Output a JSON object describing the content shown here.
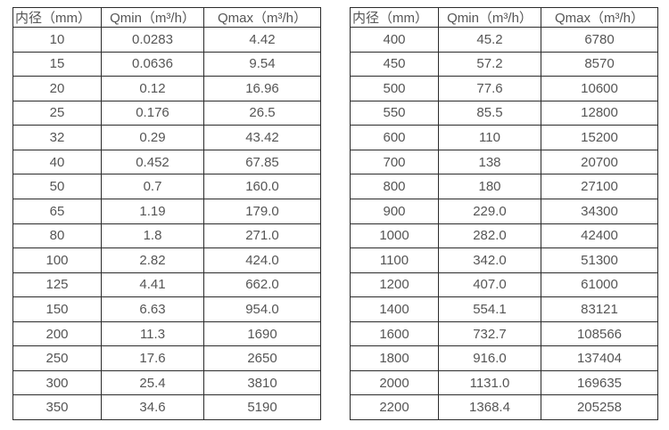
{
  "style": {
    "border_color": "#2b2b2b",
    "text_color": "#555555",
    "background": "#ffffff"
  },
  "tables": [
    {
      "name": "small-diameter-flow-table",
      "headers": [
        "内径（mm）",
        "Qmin（m³/h）",
        "Qmax（m³/h）"
      ],
      "rows": [
        [
          "10",
          "0.0283",
          "4.42"
        ],
        [
          "15",
          "0.0636",
          "9.54"
        ],
        [
          "20",
          "0.12",
          "16.96"
        ],
        [
          "25",
          "0.176",
          "26.5"
        ],
        [
          "32",
          "0.29",
          "43.42"
        ],
        [
          "40",
          "0.452",
          "67.85"
        ],
        [
          "50",
          "0.7",
          "160.0"
        ],
        [
          "65",
          "1.19",
          "179.0"
        ],
        [
          "80",
          "1.8",
          "271.0"
        ],
        [
          "100",
          "2.82",
          "424.0"
        ],
        [
          "125",
          "4.41",
          "662.0"
        ],
        [
          "150",
          "6.63",
          "954.0"
        ],
        [
          "200",
          "11.3",
          "1690"
        ],
        [
          "250",
          "17.6",
          "2650"
        ],
        [
          "300",
          "25.4",
          "3810"
        ],
        [
          "350",
          "34.6",
          "5190"
        ]
      ]
    },
    {
      "name": "large-diameter-flow-table",
      "headers": [
        "内径（mm）",
        "Qmin（m³/h）",
        "Qmax（m³/h）"
      ],
      "rows": [
        [
          "400",
          "45.2",
          "6780"
        ],
        [
          "450",
          "57.2",
          "8570"
        ],
        [
          "500",
          "77.6",
          "10600"
        ],
        [
          "550",
          "85.5",
          "12800"
        ],
        [
          "600",
          "110",
          "15200"
        ],
        [
          "700",
          "138",
          "20700"
        ],
        [
          "800",
          "180",
          "27100"
        ],
        [
          "900",
          "229.0",
          "34300"
        ],
        [
          "1000",
          "282.0",
          "42400"
        ],
        [
          "1100",
          "342.0",
          "51300"
        ],
        [
          "1200",
          "407.0",
          "61000"
        ],
        [
          "1400",
          "554.1",
          "83121"
        ],
        [
          "1600",
          "732.7",
          "108566"
        ],
        [
          "1800",
          "916.0",
          "137404"
        ],
        [
          "2000",
          "1131.0",
          "169635"
        ],
        [
          "2200",
          "1368.4",
          "205258"
        ]
      ]
    }
  ]
}
